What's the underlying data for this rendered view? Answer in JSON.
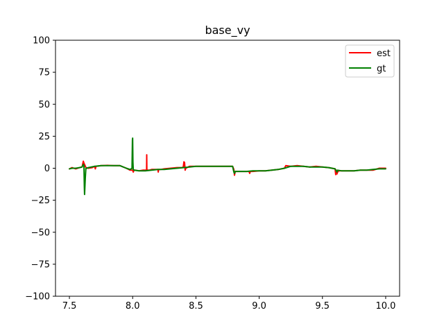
{
  "chart_data": {
    "type": "line",
    "title": "base_vy",
    "xlabel": "",
    "ylabel": "",
    "xlim": [
      7.39,
      10.11
    ],
    "ylim": [
      -100,
      100
    ],
    "xticks": [
      7.5,
      8.0,
      8.5,
      9.0,
      9.5,
      10.0
    ],
    "xtick_labels": [
      "7.5",
      "8.0",
      "8.5",
      "9.0",
      "9.5",
      "10.0"
    ],
    "yticks": [
      100,
      75,
      50,
      25,
      0,
      -25,
      -50,
      -75,
      -100
    ],
    "ytick_labels": [
      "100",
      "75",
      "50",
      "25",
      "0",
      "−25",
      "−50",
      "−75",
      "−100"
    ],
    "grid": false,
    "legend": {
      "placement": "top-right"
    },
    "series": [
      {
        "name": "est",
        "color": "#ff0000",
        "x": [
          7.5,
          7.52,
          7.55,
          7.58,
          7.6,
          7.61,
          7.615,
          7.62,
          7.63,
          7.65,
          7.68,
          7.7,
          7.705,
          7.71,
          7.75,
          7.8,
          7.85,
          7.9,
          7.95,
          7.98,
          8.0,
          8.005,
          8.01,
          8.02,
          8.05,
          8.08,
          8.1,
          8.11,
          8.111,
          8.112,
          8.115,
          8.13,
          8.15,
          8.18,
          8.2,
          8.202,
          8.205,
          8.22,
          8.25,
          8.3,
          8.35,
          8.39,
          8.4,
          8.405,
          8.41,
          8.415,
          8.42,
          8.45,
          8.5,
          8.55,
          8.6,
          8.65,
          8.7,
          8.75,
          8.79,
          8.8,
          8.805,
          8.81,
          8.815,
          8.82,
          8.85,
          8.9,
          8.92,
          8.925,
          8.93,
          8.95,
          9.0,
          9.05,
          9.1,
          9.15,
          9.2,
          9.21,
          9.25,
          9.3,
          9.35,
          9.4,
          9.45,
          9.5,
          9.55,
          9.6,
          9.605,
          9.61,
          9.615,
          9.62,
          9.63,
          9.65,
          9.7,
          9.75,
          9.8,
          9.85,
          9.9,
          9.95,
          10.0
        ],
        "y": [
          -0.5,
          0.5,
          -0.5,
          0.5,
          1.0,
          5.5,
          4.0,
          3.0,
          0.5,
          0.0,
          0.5,
          1.5,
          -0.5,
          1.5,
          2.0,
          2.2,
          2.0,
          2.0,
          0.0,
          -1.5,
          -1.5,
          -3.0,
          -1.5,
          -1.5,
          -2.0,
          -1.5,
          -1.5,
          -1.5,
          10.5,
          -1.5,
          -1.5,
          -1.5,
          -1.0,
          -1.0,
          -1.0,
          -3.0,
          -1.0,
          -1.0,
          -0.5,
          0.0,
          0.5,
          0.5,
          1.0,
          5.0,
          4.5,
          -1.5,
          0.0,
          1.5,
          1.5,
          1.5,
          1.5,
          1.5,
          1.5,
          1.5,
          1.5,
          -1.0,
          -5.5,
          -3.0,
          -2.5,
          -2.5,
          -2.5,
          -2.5,
          -2.5,
          -4.0,
          -2.5,
          -2.5,
          -2.0,
          -2.0,
          -1.5,
          -1.0,
          0.0,
          2.0,
          1.5,
          2.0,
          1.5,
          1.0,
          1.5,
          1.0,
          0.5,
          -0.5,
          -5.0,
          -1.5,
          -4.5,
          -3.0,
          -2.0,
          -2.0,
          -2.0,
          -2.0,
          -1.5,
          -1.5,
          -1.5,
          0.0,
          0.0
        ]
      },
      {
        "name": "gt",
        "color": "#008000",
        "x": [
          7.5,
          7.52,
          7.55,
          7.58,
          7.6,
          7.61,
          7.615,
          7.618,
          7.62,
          7.625,
          7.63,
          7.635,
          7.65,
          7.7,
          7.75,
          7.8,
          7.85,
          7.9,
          7.95,
          7.98,
          7.995,
          7.998,
          8.0,
          8.002,
          8.005,
          8.01,
          8.05,
          8.1,
          8.15,
          8.2,
          8.25,
          8.3,
          8.35,
          8.4,
          8.45,
          8.5,
          8.55,
          8.6,
          8.65,
          8.7,
          8.75,
          8.79,
          8.8,
          8.805,
          8.81,
          8.82,
          8.85,
          8.9,
          8.95,
          9.0,
          9.05,
          9.1,
          9.15,
          9.2,
          9.25,
          9.3,
          9.35,
          9.4,
          9.45,
          9.5,
          9.55,
          9.6,
          9.61,
          9.615,
          9.62,
          9.65,
          9.7,
          9.75,
          9.8,
          9.85,
          9.9,
          9.95,
          10.0
        ],
        "y": [
          -0.5,
          0.0,
          0.0,
          0.5,
          1.0,
          3.0,
          2.0,
          -15.0,
          -20.5,
          -8.0,
          0.0,
          0.0,
          0.5,
          1.5,
          2.0,
          2.0,
          2.0,
          2.0,
          0.0,
          -1.0,
          0.0,
          22.0,
          23.5,
          5.0,
          -1.0,
          -1.5,
          -2.0,
          -2.0,
          -1.5,
          -1.0,
          -1.0,
          -0.5,
          0.0,
          0.5,
          1.0,
          1.5,
          1.5,
          1.5,
          1.5,
          1.5,
          1.5,
          1.5,
          -3.0,
          -4.0,
          -2.5,
          -2.5,
          -2.5,
          -2.5,
          -2.0,
          -2.0,
          -2.0,
          -1.5,
          -1.0,
          0.0,
          1.5,
          1.5,
          1.5,
          1.0,
          1.0,
          1.0,
          0.5,
          -0.5,
          -2.0,
          -3.0,
          -1.5,
          -2.0,
          -2.0,
          -2.0,
          -1.5,
          -1.5,
          -1.0,
          -0.5,
          -0.5
        ]
      }
    ]
  }
}
